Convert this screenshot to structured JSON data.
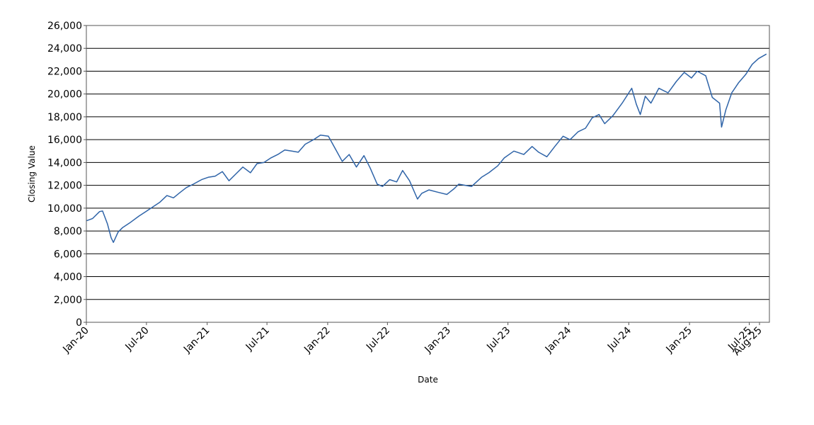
{
  "chart_data": {
    "type": "line",
    "title": "",
    "xlabel": "Date",
    "ylabel": "Closing Value",
    "ylim": [
      0,
      26000
    ],
    "yticks": [
      0,
      2000,
      4000,
      6000,
      8000,
      10000,
      12000,
      14000,
      16000,
      18000,
      20000,
      22000,
      24000,
      26000
    ],
    "ytick_labels": [
      "0",
      "2,000",
      "4,000",
      "6,000",
      "8,000",
      "10,000",
      "12,000",
      "14,000",
      "16,000",
      "18,000",
      "20,000",
      "22,000",
      "24,000",
      "26,000"
    ],
    "xlim": [
      "2020-01-01",
      "2025-08-31"
    ],
    "xticks": [
      "2020-01-01",
      "2020-07-01",
      "2021-01-01",
      "2021-07-01",
      "2022-01-01",
      "2022-07-01",
      "2023-01-01",
      "2023-07-01",
      "2024-01-01",
      "2024-07-01",
      "2025-01-01",
      "2025-07-01",
      "2025-08-01"
    ],
    "xtick_labels": [
      "Jan-20",
      "Jul-20",
      "Jan-21",
      "Jul-21",
      "Jan-22",
      "Jul-22",
      "Jan-23",
      "Jul-23",
      "Jan-24",
      "Jul-24",
      "Jan-25",
      "Jul-25",
      "Aug-25"
    ],
    "grid": {
      "horizontal": true,
      "vertical": false
    },
    "legend": "none",
    "line_color": "#2f64a8",
    "series": [
      {
        "x": [
          "2020-01-02",
          "2020-01-20",
          "2020-02-10",
          "2020-02-19",
          "2020-03-05",
          "2020-03-16",
          "2020-03-23",
          "2020-04-06",
          "2020-04-20",
          "2020-05-11",
          "2020-06-08",
          "2020-06-29",
          "2020-07-20",
          "2020-08-10",
          "2020-09-01",
          "2020-09-21",
          "2020-10-12",
          "2020-10-30",
          "2020-11-20",
          "2020-12-15",
          "2021-01-04",
          "2021-01-25",
          "2021-02-16",
          "2021-03-08",
          "2021-03-29",
          "2021-04-19",
          "2021-05-12",
          "2021-06-01",
          "2021-06-22",
          "2021-07-13",
          "2021-08-03",
          "2021-08-24",
          "2021-09-14",
          "2021-10-04",
          "2021-10-25",
          "2021-11-19",
          "2021-12-10",
          "2022-01-03",
          "2022-01-24",
          "2022-02-14",
          "2022-03-07",
          "2022-03-29",
          "2022-04-21",
          "2022-05-10",
          "2022-05-31",
          "2022-06-16",
          "2022-07-08",
          "2022-07-29",
          "2022-08-16",
          "2022-09-06",
          "2022-09-30",
          "2022-10-13",
          "2022-11-04",
          "2022-11-30",
          "2022-12-28",
          "2023-01-19",
          "2023-02-02",
          "2023-03-13",
          "2023-04-12",
          "2023-05-04",
          "2023-05-31",
          "2023-06-20",
          "2023-07-19",
          "2023-08-18",
          "2023-09-12",
          "2023-10-02",
          "2023-10-27",
          "2023-11-20",
          "2023-12-15",
          "2024-01-05",
          "2024-01-30",
          "2024-02-21",
          "2024-03-12",
          "2024-04-02",
          "2024-04-19",
          "2024-05-14",
          "2024-06-11",
          "2024-07-10",
          "2024-07-24",
          "2024-08-05",
          "2024-08-20",
          "2024-09-06",
          "2024-09-30",
          "2024-10-28",
          "2024-11-22",
          "2024-12-16",
          "2025-01-07",
          "2025-01-24",
          "2025-02-19",
          "2025-03-11",
          "2025-04-02",
          "2025-04-08",
          "2025-04-21",
          "2025-05-09",
          "2025-05-30",
          "2025-06-20",
          "2025-07-10",
          "2025-07-29",
          "2025-08-22"
        ],
        "values": [
          8900,
          9100,
          9700,
          9750,
          8600,
          7400,
          7000,
          7900,
          8300,
          8700,
          9300,
          9700,
          10100,
          10500,
          11100,
          10900,
          11400,
          11800,
          12100,
          12500,
          12700,
          12800,
          13200,
          12400,
          13000,
          13600,
          13100,
          13900,
          14000,
          14400,
          14700,
          15100,
          15000,
          14900,
          15600,
          16000,
          16400,
          16300,
          15200,
          14100,
          14700,
          13600,
          14600,
          13500,
          12100,
          11900,
          12500,
          12300,
          13300,
          12400,
          10800,
          11300,
          11600,
          11400,
          11200,
          11700,
          12100,
          11900,
          12700,
          13100,
          13700,
          14400,
          15000,
          14700,
          15400,
          14900,
          14500,
          15400,
          16300,
          16000,
          16700,
          17000,
          17900,
          18200,
          17400,
          18100,
          19200,
          20500,
          19100,
          18200,
          19800,
          19200,
          20500,
          20100,
          21100,
          21900,
          21400,
          22000,
          21600,
          19700,
          19200,
          17100,
          18600,
          20100,
          21000,
          21700,
          22600,
          23100,
          23500
        ]
      }
    ]
  }
}
